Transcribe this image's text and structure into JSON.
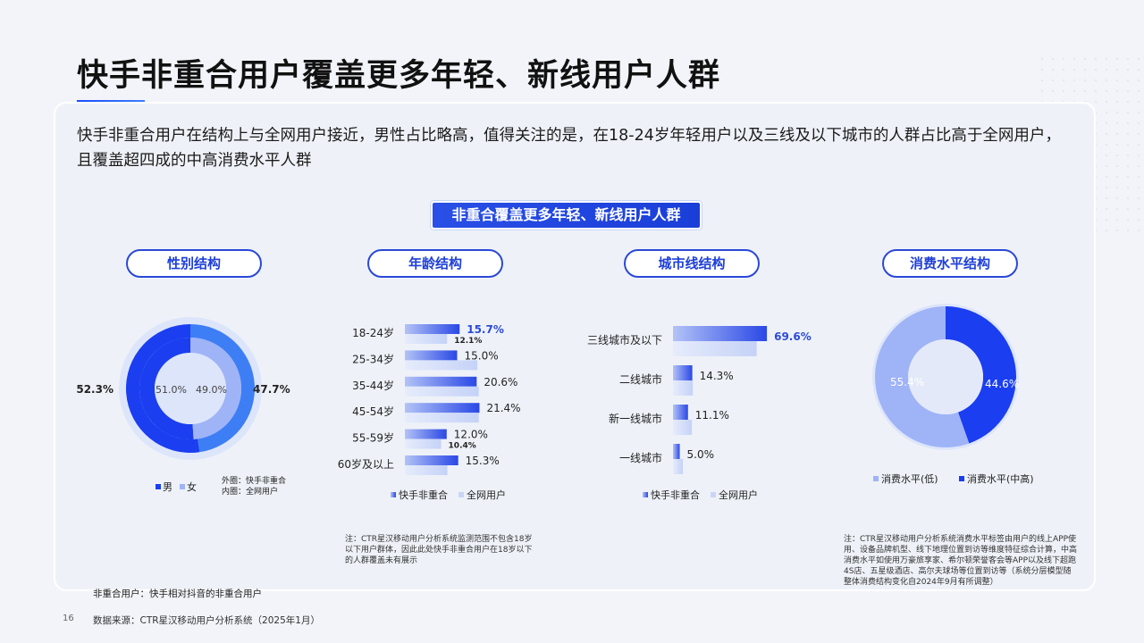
{
  "page": {
    "title": "快手非重合用户覆盖更多年轻、新线用户人群",
    "intro": "快手非重合用户在结构上与全网用户接近，男性占比略高，值得关注的是，在18-24岁年轻用户以及三线及以下城市的人群占比高于全网用户，且覆盖超四成的中高消费水平人群",
    "banner": "非重合覆盖更多年轻、新线用户人群",
    "sections": [
      "性别结构",
      "年龄结构",
      "城市线结构",
      "消费水平结构"
    ],
    "notes": {
      "age": "注：CTR星汉移动用户分析系统监测范围不包含18岁以下用户群体，因此此处快手非重合用户在18岁以下的人群覆盖未有展示",
      "consumption": "注：CTR星汉移动用户分析系统消费水平标签由用户的线上APP使用、设备品牌机型、线下地理位置到访等维度特征综合计算，中高消费水平如使用万豪旅享家、希尔顿荣誉客会等APP以及线下超跑4S店、五星级酒店、高尔夫球场等位置到访等（系统分层模型随整体消费结构变化自2024年9月有所调整）"
    },
    "footnote": "非重合用户：快手相对抖音的非重合用户",
    "source": "数据来源：CTR星汉移动用户分析系统（2025年1月）",
    "page_number": "16"
  },
  "colors": {
    "dark_blue": "#1a3ef0",
    "mid_blue": "#3d7ef5",
    "light_blue": "#9fb3f7",
    "pale_blue": "#dde5fb",
    "label_blue": "#2b4ad8"
  },
  "chart_data": [
    {
      "type": "pie",
      "title": "性别结构",
      "variant": "double-ring",
      "categories": [
        "男",
        "女"
      ],
      "series": [
        {
          "name": "快手非重合",
          "values": [
            52.3,
            47.7
          ],
          "labels": [
            "52.3%",
            "47.7%"
          ]
        },
        {
          "name": "全网用户",
          "values": [
            51.0,
            49.0
          ],
          "labels": [
            "51.0%",
            "49.0%"
          ]
        }
      ],
      "legend_note": [
        "外圈：快手非重合",
        "内圈：全网用户"
      ],
      "legend": "bottom"
    },
    {
      "type": "bar",
      "orientation": "horizontal",
      "title": "年龄结构",
      "categories": [
        "18-24岁",
        "25-34岁",
        "35-44岁",
        "45-54岁",
        "55-59岁",
        "60岁及以上"
      ],
      "series": [
        {
          "name": "快手非重合",
          "values": [
            15.7,
            15.0,
            20.6,
            21.4,
            12.0,
            15.3
          ],
          "labels": [
            "15.7%",
            "15.0%",
            "20.6%",
            "21.4%",
            "12.0%",
            "15.3%"
          ]
        },
        {
          "name": "全网用户",
          "values": [
            12.1,
            20.8,
            21.2,
            21.2,
            10.4,
            12.2
          ],
          "labels": [
            "12.1%",
            "",
            "",
            "",
            "10.4%",
            ""
          ]
        }
      ],
      "legend": "bottom"
    },
    {
      "type": "bar",
      "orientation": "horizontal",
      "title": "城市线结构",
      "categories": [
        "三线城市及以下",
        "二线城市",
        "新一线城市",
        "一线城市"
      ],
      "series": [
        {
          "name": "快手非重合",
          "values": [
            69.6,
            14.3,
            11.1,
            5.0
          ],
          "labels": [
            "69.6%",
            "14.3%",
            "11.1%",
            "5.0%"
          ]
        },
        {
          "name": "全网用户",
          "values": [
            62.0,
            14.7,
            14.0,
            7.3
          ],
          "labels": [
            "",
            "",
            "",
            ""
          ]
        }
      ],
      "legend": "bottom"
    },
    {
      "type": "pie",
      "title": "消费水平结构",
      "variant": "donut",
      "categories": [
        "消费水平(低)",
        "消费水平(中高)"
      ],
      "values": [
        55.4,
        44.6
      ],
      "labels": [
        "55.4%",
        "44.6%"
      ],
      "legend": "bottom"
    }
  ]
}
